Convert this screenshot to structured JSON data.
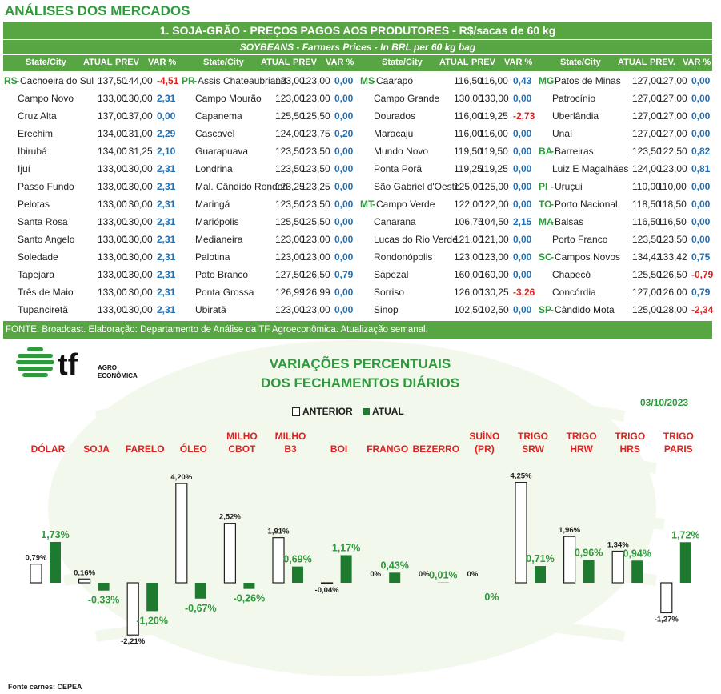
{
  "header": {
    "title": "ANÁLISES DOS MERCADOS"
  },
  "table": {
    "title": "1. SOJA-GRÃO - PREÇOS PAGOS AOS PRODUTORES - R$/sacas de 60 kg",
    "subtitle": "SOYBEANS - Farmers Prices - In BRL per 60 kg bag",
    "headers": [
      [
        "State/City",
        "ATUAL",
        "PREV",
        "VAR %"
      ],
      [
        "State/City",
        "ATUAL",
        "PREV",
        "VAR %"
      ],
      [
        "State/City",
        "ATUAL",
        "PREV",
        "VAR %"
      ],
      [
        "State/City",
        "ATUAL",
        "PREV.",
        "VAR %"
      ]
    ],
    "rows": [
      [
        [
          "RS",
          "Cachoeira do Sul",
          "137,50",
          "144,00",
          "-4,51"
        ],
        [
          "PR",
          "Assis Chateaubriand",
          "123,00",
          "123,00",
          "0,00"
        ],
        [
          "MS",
          "Caarapó",
          "116,50",
          "116,00",
          "0,43"
        ],
        [
          "MG",
          "Patos de Minas",
          "127,00",
          "127,00",
          "0,00"
        ]
      ],
      [
        [
          "",
          "Campo Novo",
          "133,00",
          "130,00",
          "2,31"
        ],
        [
          "",
          "Campo Mourão",
          "123,00",
          "123,00",
          "0,00"
        ],
        [
          "",
          "Campo Grande",
          "130,00",
          "130,00",
          "0,00"
        ],
        [
          "",
          "Patrocínio",
          "127,00",
          "127,00",
          "0,00"
        ]
      ],
      [
        [
          "",
          "Cruz Alta",
          "137,00",
          "137,00",
          "0,00"
        ],
        [
          "",
          "Capanema",
          "125,50",
          "125,50",
          "0,00"
        ],
        [
          "",
          "Dourados",
          "116,00",
          "119,25",
          "-2,73"
        ],
        [
          "",
          "Uberlândia",
          "127,00",
          "127,00",
          "0,00"
        ]
      ],
      [
        [
          "",
          "Erechim",
          "134,00",
          "131,00",
          "2,29"
        ],
        [
          "",
          "Cascavel",
          "124,00",
          "123,75",
          "0,20"
        ],
        [
          "",
          "Maracaju",
          "116,00",
          "116,00",
          "0,00"
        ],
        [
          "",
          "Unaí",
          "127,00",
          "127,00",
          "0,00"
        ]
      ],
      [
        [
          "",
          "Ibirubá",
          "134,00",
          "131,25",
          "2,10"
        ],
        [
          "",
          "Guarapuava",
          "123,50",
          "123,50",
          "0,00"
        ],
        [
          "",
          "Mundo Novo",
          "119,50",
          "119,50",
          "0,00"
        ],
        [
          "BA",
          "Barreiras",
          "123,50",
          "122,50",
          "0,82"
        ]
      ],
      [
        [
          "",
          "Ijuí",
          "133,00",
          "130,00",
          "2,31"
        ],
        [
          "",
          "Londrina",
          "123,50",
          "123,50",
          "0,00"
        ],
        [
          "",
          "Ponta Porã",
          "119,25",
          "119,25",
          "0,00"
        ],
        [
          "",
          "Luiz E Magalhães",
          "124,00",
          "123,00",
          "0,81"
        ]
      ],
      [
        [
          "",
          "Passo Fundo",
          "133,00",
          "130,00",
          "2,31"
        ],
        [
          "",
          "Mal. Cândido Rondon",
          "123,25",
          "123,25",
          "0,00"
        ],
        [
          "",
          "São Gabriel d'Oeste",
          "125,00",
          "125,00",
          "0,00"
        ],
        [
          "PI",
          "Uruçui",
          "110,00",
          "110,00",
          "0,00"
        ]
      ],
      [
        [
          "",
          "Pelotas",
          "133,00",
          "130,00",
          "2,31"
        ],
        [
          "",
          "Maringá",
          "123,50",
          "123,50",
          "0,00"
        ],
        [
          "MT",
          "Campo Verde",
          "122,00",
          "122,00",
          "0,00"
        ],
        [
          "TO",
          "Porto Nacional",
          "118,50",
          "118,50",
          "0,00"
        ]
      ],
      [
        [
          "",
          "Santa Rosa",
          "133,00",
          "130,00",
          "2,31"
        ],
        [
          "",
          "Mariópolis",
          "125,50",
          "125,50",
          "0,00"
        ],
        [
          "",
          "Canarana",
          "106,75",
          "104,50",
          "2,15"
        ],
        [
          "MA",
          "Balsas",
          "116,50",
          "116,50",
          "0,00"
        ]
      ],
      [
        [
          "",
          "Santo Angelo",
          "133,00",
          "130,00",
          "2,31"
        ],
        [
          "",
          "Medianeira",
          "123,00",
          "123,00",
          "0,00"
        ],
        [
          "",
          "Lucas do Rio Verde",
          "121,00",
          "121,00",
          "0,00"
        ],
        [
          "",
          "Porto Franco",
          "123,50",
          "123,50",
          "0,00"
        ]
      ],
      [
        [
          "",
          "Soledade",
          "133,00",
          "130,00",
          "2,31"
        ],
        [
          "",
          "Palotina",
          "123,00",
          "123,00",
          "0,00"
        ],
        [
          "",
          "Rondonópolis",
          "123,00",
          "123,00",
          "0,00"
        ],
        [
          "SC",
          "Campos Novos",
          "134,42",
          "133,42",
          "0,75"
        ]
      ],
      [
        [
          "",
          "Tapejara",
          "133,00",
          "130,00",
          "2,31"
        ],
        [
          "",
          "Pato Branco",
          "127,50",
          "126,50",
          "0,79"
        ],
        [
          "",
          "Sapezal",
          "160,00",
          "160,00",
          "0,00"
        ],
        [
          "",
          "Chapecó",
          "125,50",
          "126,50",
          "-0,79"
        ]
      ],
      [
        [
          "",
          "Três de Maio",
          "133,00",
          "130,00",
          "2,31"
        ],
        [
          "",
          "Ponta Grossa",
          "126,99",
          "126,99",
          "0,00"
        ],
        [
          "",
          "Sorriso",
          "126,00",
          "130,25",
          "-3,26"
        ],
        [
          "",
          "Concórdia",
          "127,00",
          "126,00",
          "0,79"
        ]
      ],
      [
        [
          "",
          "Tupanciretã",
          "133,00",
          "130,00",
          "2,31"
        ],
        [
          "",
          "Ubiratã",
          "123,00",
          "123,00",
          "0,00"
        ],
        [
          "",
          "Sinop",
          "102,50",
          "102,50",
          "0,00"
        ],
        [
          "SP",
          "Cândido Mota",
          "125,00",
          "128,00",
          "-2,34"
        ]
      ]
    ],
    "footer": "FONTE: Broadcast. Elaboração: Departamento de Análise da TF Agroeconômica. Atualização semanal."
  },
  "logo": {
    "mark": "tf",
    "line1": "AGRO",
    "line2": "ECONÔMICA"
  },
  "chart_data": {
    "type": "bar",
    "title": "VARIAÇÕES PERCENTUAIS DOS FECHAMENTOS DIÁRIOS",
    "title_lines": [
      "VARIAÇÕES PERCENTUAIS",
      "DOS FECHAMENTOS DIÁRIOS"
    ],
    "date": "03/10/2023",
    "categories": [
      [
        "DÓLAR"
      ],
      [
        "SOJA"
      ],
      [
        "FARELO"
      ],
      [
        "ÓLEO"
      ],
      [
        "MILHO",
        "CBOT"
      ],
      [
        "MILHO",
        "B3"
      ],
      [
        "BOI"
      ],
      [
        "FRANGO"
      ],
      [
        "BEZERRO"
      ],
      [
        "SUÍNO",
        "(PR)"
      ],
      [
        "TRIGO",
        "SRW"
      ],
      [
        "TRIGO",
        "HRW"
      ],
      [
        "TRIGO",
        "HRS"
      ],
      [
        "TRIGO",
        "PARIS"
      ]
    ],
    "series": [
      {
        "name": "ANTERIOR",
        "color": "#ffffff",
        "values": [
          0.79,
          0.16,
          -2.21,
          4.2,
          2.52,
          1.91,
          -0.04,
          0,
          0,
          0,
          4.25,
          1.96,
          1.34,
          -1.27
        ],
        "labels": [
          "0,79%",
          "0,16%",
          "-2,21%",
          "4,20%",
          "2,52%",
          "1,91%",
          "-0,04%",
          "0%",
          "0%",
          "0%",
          "4,25%",
          "1,96%",
          "1,34%",
          "-1,27%"
        ]
      },
      {
        "name": "ATUAL",
        "color": "#1e7a2e",
        "values": [
          1.73,
          -0.33,
          -1.2,
          -0.67,
          -0.26,
          0.69,
          1.17,
          0.43,
          0.01,
          null,
          0.71,
          0.96,
          0.94,
          1.72
        ],
        "labels": [
          "1,73%",
          "-0,33%",
          "-1,20%",
          "-0,67%",
          "-0,26%",
          "0,69%",
          "1,17%",
          "0,43%",
          "0,01%",
          "0%",
          "0,71%",
          "0,96%",
          "0,94%",
          "1,72%"
        ]
      }
    ],
    "legend_position": "top-center"
  },
  "source_note": "Fonte carnes: CEPEA"
}
